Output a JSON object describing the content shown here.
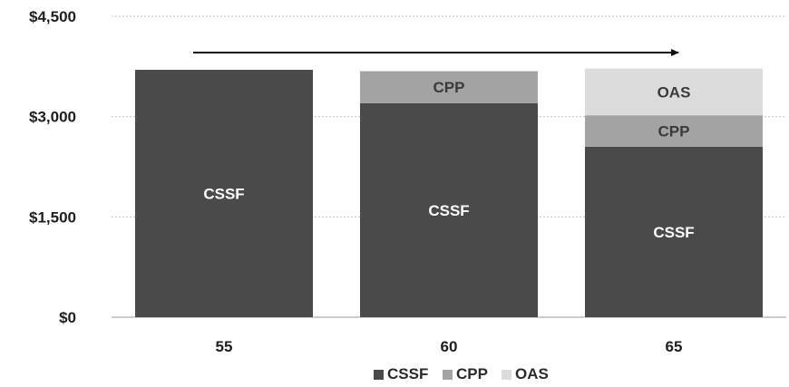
{
  "chart_data": {
    "type": "bar",
    "stacked": true,
    "title": "",
    "xlabel": "",
    "ylabel": "",
    "categories": [
      "55",
      "60",
      "65"
    ],
    "series": [
      {
        "name": "CSSF",
        "values": [
          3700,
          3200,
          2550
        ],
        "color": "#4a4a4a",
        "label_color": "#ffffff"
      },
      {
        "name": "CPP",
        "values": [
          0,
          480,
          470
        ],
        "color": "#a3a3a3",
        "label_color": "#3a3a3a"
      },
      {
        "name": "OAS",
        "values": [
          0,
          0,
          700
        ],
        "color": "#dcdcdc",
        "label_color": "#3a3a3a"
      }
    ],
    "ylim": [
      0,
      4500
    ],
    "yticks": [
      0,
      1500,
      3000,
      4500
    ],
    "ytick_labels": [
      "$0",
      "$1,500",
      "$3,000",
      "$4,500"
    ],
    "grid": true,
    "legend": {
      "placement": "bottom",
      "entries": [
        "CSSF",
        "CPP",
        "OAS"
      ]
    },
    "annotation": {
      "type": "arrow",
      "direction": "right"
    }
  }
}
